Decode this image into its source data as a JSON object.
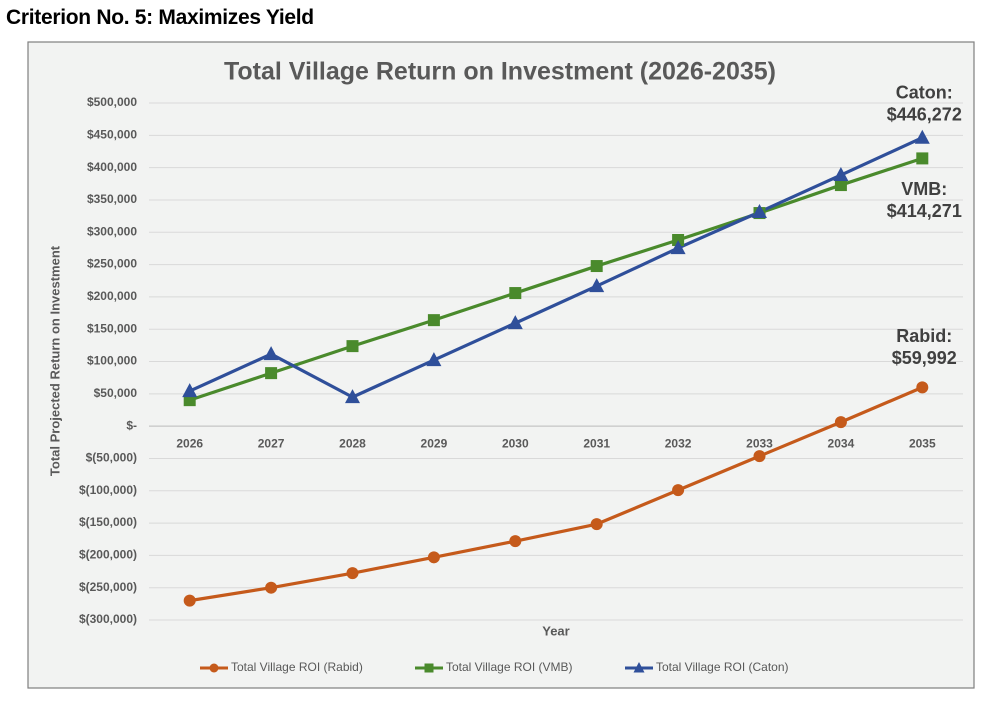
{
  "header": "Criterion No. 5: Maximizes Yield",
  "chart_data": {
    "type": "line",
    "title": "Total Village Return on Investment (2026-2035)",
    "x_label": "Year",
    "y_label": "Total Projected Return on Investment",
    "categories": [
      "2026",
      "2027",
      "2028",
      "2029",
      "2030",
      "2031",
      "2032",
      "2033",
      "2034",
      "2035"
    ],
    "series": [
      {
        "name": "Total Village ROI (Rabid)",
        "color": "#c55a1b",
        "marker": "circle",
        "values": [
          -270000,
          -250000,
          -227500,
          -203000,
          -178000,
          -151700,
          -99000,
          -46400,
          6200,
          59992
        ]
      },
      {
        "name": "Total Village ROI (VMB)",
        "color": "#4a8a2c",
        "marker": "square",
        "values": [
          40200,
          82000,
          123800,
          164000,
          205900,
          247700,
          288000,
          329700,
          373000,
          414271
        ]
      },
      {
        "name": "Total Village ROI (Caton)",
        "color": "#2f4f9a",
        "marker": "triangle",
        "values": [
          54200,
          111500,
          44900,
          102200,
          159400,
          216700,
          275500,
          331300,
          388500,
          446272
        ]
      }
    ],
    "ylim": [
      -300000,
      500000
    ],
    "yticks": [
      {
        "value": -300000,
        "label": "$(300,000)"
      },
      {
        "value": -250000,
        "label": "$(250,000)"
      },
      {
        "value": -200000,
        "label": "$(200,000)"
      },
      {
        "value": -150000,
        "label": "$(150,000)"
      },
      {
        "value": -100000,
        "label": "$(100,000)"
      },
      {
        "value": -50000,
        "label": "$(50,000)"
      },
      {
        "value": 0,
        "label": "$-"
      },
      {
        "value": 50000,
        "label": "$50,000"
      },
      {
        "value": 100000,
        "label": "$100,000"
      },
      {
        "value": 150000,
        "label": "$150,000"
      },
      {
        "value": 200000,
        "label": "$200,000"
      },
      {
        "value": 250000,
        "label": "$250,000"
      },
      {
        "value": 300000,
        "label": "$300,000"
      },
      {
        "value": 350000,
        "label": "$350,000"
      },
      {
        "value": 400000,
        "label": "$400,000"
      },
      {
        "value": 450000,
        "label": "$450,000"
      },
      {
        "value": 500000,
        "label": "$500,000"
      }
    ],
    "grid": true,
    "legend": "bottom",
    "annotations": [
      {
        "series": 2,
        "lines": [
          "Caton:",
          "$446,272"
        ]
      },
      {
        "series": 1,
        "lines": [
          "VMB:",
          "$414,271"
        ]
      },
      {
        "series": 0,
        "lines": [
          "Rabid:",
          "$59,992"
        ]
      }
    ]
  }
}
